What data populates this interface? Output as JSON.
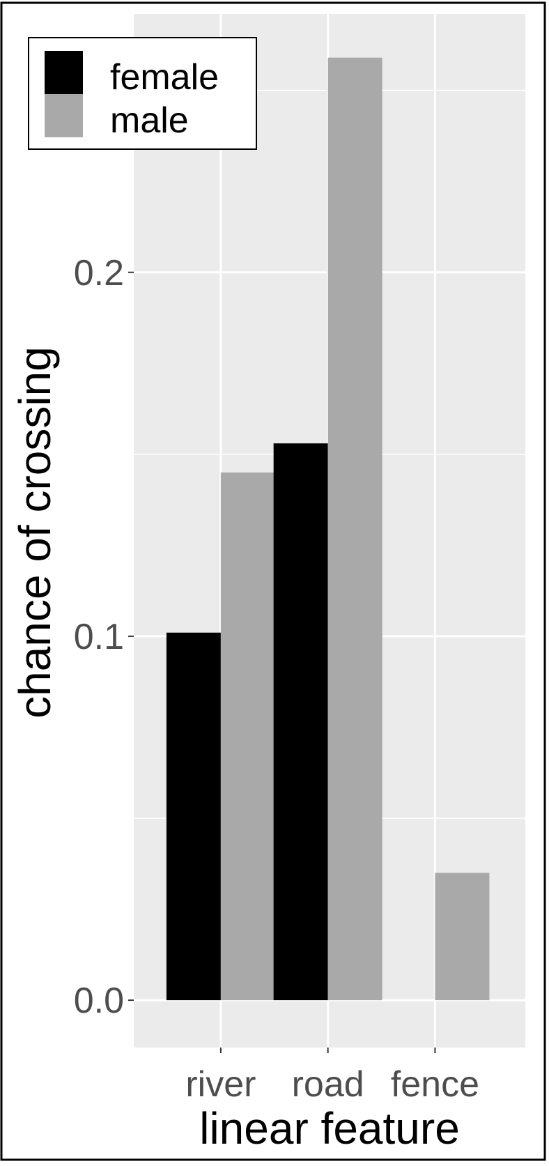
{
  "chart_data": {
    "type": "bar",
    "xlabel": "linear feature",
    "ylabel": "chance of crossing",
    "categories": [
      "river",
      "road",
      "fence"
    ],
    "series": [
      {
        "name": "female",
        "color": "#000000",
        "values": [
          0.101,
          0.153,
          0.0
        ]
      },
      {
        "name": "male",
        "color": "#a9a9a9",
        "values": [
          0.145,
          0.259,
          0.035
        ]
      }
    ],
    "yticks": [
      0.0,
      0.1,
      0.2
    ],
    "ytick_labels": [
      "0.0",
      "0.1",
      "0.2"
    ],
    "ylim": [
      -0.013,
      0.271
    ],
    "grid": true,
    "legend_position": "top-left",
    "panel_color": "#ebebeb",
    "grid_color": "#ffffff"
  }
}
